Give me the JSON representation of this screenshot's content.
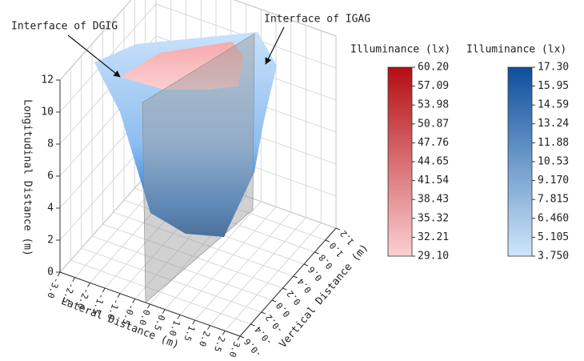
{
  "chart_data": {
    "type": "surface3d",
    "annotations": [
      "Interface of DGIG",
      "Interface of IGAG"
    ],
    "xlabel": "Lateral Distance (m)",
    "ylabel": "Vertical Distance (m)",
    "zlabel": "Longitudinal Distance (m)",
    "xlim": [
      -3,
      3
    ],
    "xticks": [
      {
        "value": -3,
        "label": "-3.0"
      },
      -2.5,
      {
        "value": -2,
        "label": "-2.0"
      },
      -1.5,
      {
        "value": -1,
        "label": "-1.0"
      },
      -0.5,
      {
        "value": 0,
        "label": "0.0"
      },
      0.5,
      {
        "value": 1,
        "label": "1.0"
      },
      1.5,
      {
        "value": 2,
        "label": "2.0"
      },
      2.5,
      {
        "value": 3,
        "label": "3.0"
      }
    ],
    "ylim": [
      -0.6,
      1.2
    ],
    "yticks": [
      -0.6,
      -0.4,
      -0.2,
      {
        "value": 0,
        "label": "0.0"
      },
      0.2,
      0.4,
      0.6,
      0.8,
      {
        "value": 1,
        "label": "1.0"
      },
      1.2
    ],
    "zlim": [
      0,
      12
    ],
    "zticks": [
      0,
      2,
      4,
      6,
      8,
      10,
      12
    ],
    "grid": true,
    "colorbars": [
      {
        "title": "Illuminance (lx)",
        "colors": [
          "#fbd0d2",
          "#b40d12"
        ],
        "lim": [
          29.1,
          60.2
        ],
        "ticks": [
          {
            "value": 60.2,
            "label": "60.20"
          },
          57.09,
          53.98,
          50.87,
          47.76,
          44.65,
          41.54,
          38.43,
          35.32,
          32.21,
          {
            "value": 29.1,
            "label": "29.10"
          }
        ]
      },
      {
        "title": "Illuminance (lx)",
        "colors": [
          "#cfe6fb",
          "#0d4f9c"
        ],
        "lim": [
          3.75,
          17.3
        ],
        "ticks": [
          {
            "value": 17.3,
            "label": "17.30"
          },
          15.95,
          14.59,
          13.24,
          11.88,
          10.53,
          {
            "value": 9.17,
            "label": "9.170"
          },
          7.815,
          {
            "value": 6.46,
            "label": "6.460"
          },
          5.105,
          {
            "value": 3.75,
            "label": "3.750"
          }
        ]
      }
    ]
  }
}
